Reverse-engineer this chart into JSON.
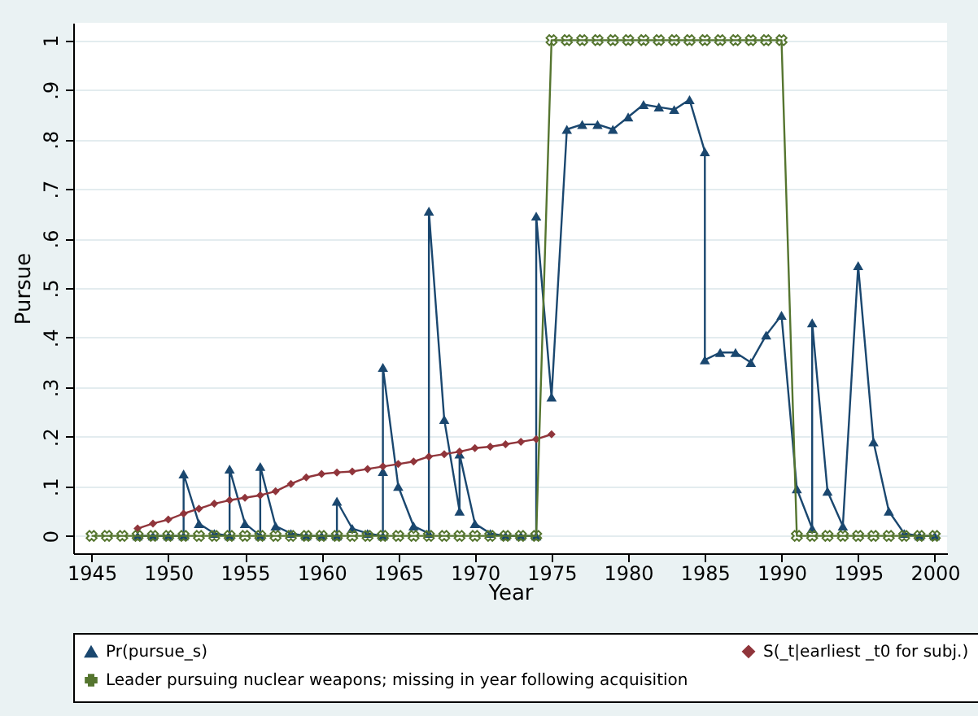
{
  "chart_data": {
    "type": "line",
    "xlabel": "Year",
    "ylabel": "Pursue",
    "xlim": [
      1943.8,
      2000.8
    ],
    "xticks": [
      1945,
      1950,
      1955,
      1960,
      1965,
      1970,
      1975,
      1980,
      1985,
      1990,
      1995,
      2000
    ],
    "ylim": [
      -0.035,
      1.035
    ],
    "yticks": [
      0,
      {
        "value": 0.1,
        "label": ".1"
      },
      {
        "value": 0.2,
        "label": ".2"
      },
      {
        "value": 0.3,
        "label": ".3"
      },
      {
        "value": 0.4,
        "label": ".4"
      },
      {
        "value": 0.5,
        "label": ".5"
      },
      {
        "value": 0.6,
        "label": ".6"
      },
      {
        "value": 0.7,
        "label": ".7"
      },
      {
        "value": 0.8,
        "label": ".8"
      },
      {
        "value": 0.9,
        "label": ".9"
      },
      1
    ],
    "grid": "y",
    "legend": "bottom",
    "line_style": "solid",
    "series": [
      {
        "name": "Pr(pursue_s)",
        "color": "#1a476f",
        "marker": "triangle",
        "x": [
          1948,
          1949,
          1950,
          1951,
          1951,
          1952,
          1953,
          1954,
          1954,
          1955,
          1956,
          1956,
          1957,
          1958,
          1959,
          1960,
          1961,
          1961,
          1962,
          1963,
          1964,
          1964,
          1964,
          1965,
          1966,
          1967,
          1967,
          1968,
          1969,
          1969,
          1970,
          1971,
          1972,
          1973,
          1974,
          1974,
          1975,
          1976,
          1977,
          1978,
          1979,
          1980,
          1981,
          1982,
          1983,
          1984,
          1985,
          1985,
          1986,
          1987,
          1988,
          1989,
          1990,
          1991,
          1992,
          1992,
          1993,
          1994,
          1995,
          1996,
          1997,
          1998,
          1999,
          2000
        ],
        "values": [
          0,
          0,
          0,
          0,
          0.125,
          0.025,
          0.005,
          0,
          0.135,
          0.025,
          0,
          0.14,
          0.02,
          0.005,
          0,
          0,
          0,
          0.07,
          0.015,
          0.005,
          0,
          0.13,
          0.34,
          0.1,
          0.02,
          0.005,
          0.655,
          0.235,
          0.05,
          0.165,
          0.025,
          0.005,
          0,
          0,
          0,
          0.645,
          0.28,
          0.82,
          0.83,
          0.83,
          0.82,
          0.845,
          0.87,
          0.865,
          0.86,
          0.88,
          0.775,
          0.355,
          0.37,
          0.37,
          0.35,
          0.405,
          0.445,
          0.095,
          0.015,
          0.43,
          0.09,
          0.02,
          0.545,
          0.19,
          0.05,
          0.005,
          0,
          0
        ]
      },
      {
        "name": "S(_t|earliest _t0 for subj.)",
        "color": "#90353b",
        "marker": "diamond",
        "x": [
          1948,
          1949,
          1950,
          1951,
          1952,
          1953,
          1954,
          1955,
          1956,
          1957,
          1958,
          1959,
          1960,
          1961,
          1962,
          1963,
          1964,
          1965,
          1966,
          1967,
          1968,
          1969,
          1970,
          1971,
          1972,
          1973,
          1974,
          1975
        ],
        "values": [
          0.015,
          0.025,
          0.033,
          0.045,
          0.055,
          0.065,
          0.072,
          0.077,
          0.082,
          0.09,
          0.105,
          0.118,
          0.125,
          0.128,
          0.13,
          0.135,
          0.14,
          0.145,
          0.15,
          0.16,
          0.165,
          0.17,
          0.177,
          0.18,
          0.185,
          0.19,
          0.195,
          0.205
        ]
      },
      {
        "name": "Leader pursuing nuclear weapons; missing in year following acquisition",
        "color": "#55752f",
        "marker": "cross",
        "x": [
          1945,
          1946,
          1947,
          1948,
          1949,
          1950,
          1951,
          1952,
          1953,
          1954,
          1955,
          1956,
          1957,
          1958,
          1959,
          1960,
          1961,
          1962,
          1963,
          1964,
          1965,
          1966,
          1967,
          1968,
          1969,
          1970,
          1971,
          1972,
          1973,
          1974,
          1975,
          1976,
          1977,
          1978,
          1979,
          1980,
          1981,
          1982,
          1983,
          1984,
          1985,
          1986,
          1987,
          1988,
          1989,
          1990,
          1991,
          1992,
          1993,
          1994,
          1995,
          1996,
          1997,
          1998,
          1999,
          2000
        ],
        "values": [
          0,
          0,
          0,
          0,
          0,
          0,
          0,
          0,
          0,
          0,
          0,
          0,
          0,
          0,
          0,
          0,
          0,
          0,
          0,
          0,
          0,
          0,
          0,
          0,
          0,
          0,
          0,
          0,
          0,
          0,
          1,
          1,
          1,
          1,
          1,
          1,
          1,
          1,
          1,
          1,
          1,
          1,
          1,
          1,
          1,
          1,
          0,
          0,
          0,
          0,
          0,
          0,
          0,
          0,
          0,
          0
        ]
      }
    ]
  }
}
